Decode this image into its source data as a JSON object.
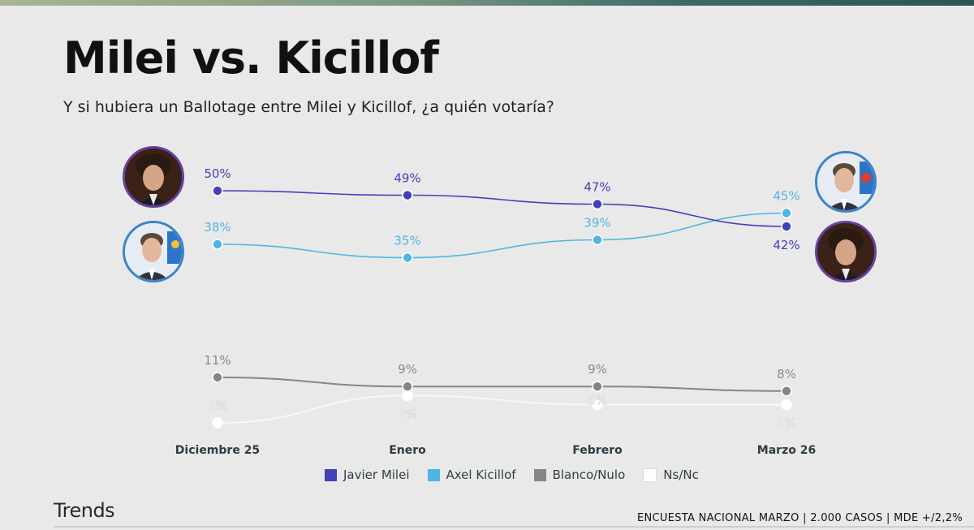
{
  "title": "Milei vs. Kicillof",
  "subtitle": "Y si hubiera un Ballotage entre Milei y Kicillof, ¿a quién votaría?",
  "brand": "Trends",
  "footer_note": "ENCUESTA NACIONAL MARZO | 2.000 CASOS | MDE +/2,2%",
  "portraits": {
    "left_top": "javier-milei-portrait",
    "left_bottom": "axel-kicillof-portrait",
    "right_top": "axel-kicillof-portrait",
    "right_bottom": "javier-milei-portrait"
  },
  "chart_data": {
    "type": "line",
    "categories": [
      "Diciembre 25",
      "Enero",
      "Febrero",
      "Marzo 26"
    ],
    "series": [
      {
        "name": "Javier Milei",
        "values": [
          50,
          49,
          47,
          42
        ],
        "labels": [
          "50%",
          "49%",
          "47%",
          "42%"
        ],
        "color": "#4440b8"
      },
      {
        "name": "Axel Kicillof",
        "values": [
          38,
          35,
          39,
          45
        ],
        "labels": [
          "38%",
          "35%",
          "39%",
          "45%"
        ],
        "color": "#4fb6e4"
      },
      {
        "name": "Blanco/Nulo",
        "values": [
          11,
          9,
          9,
          8
        ],
        "labels": [
          "11%",
          "9%",
          "9%",
          "8%"
        ],
        "color": "#858585"
      },
      {
        "name": "Ns/Nc",
        "values": [
          1,
          7,
          5,
          5
        ],
        "labels": [
          "1%",
          "7%",
          "5%",
          "5%"
        ],
        "color": "#ffffff"
      }
    ],
    "legend_position": "bottom",
    "grid": false
  }
}
